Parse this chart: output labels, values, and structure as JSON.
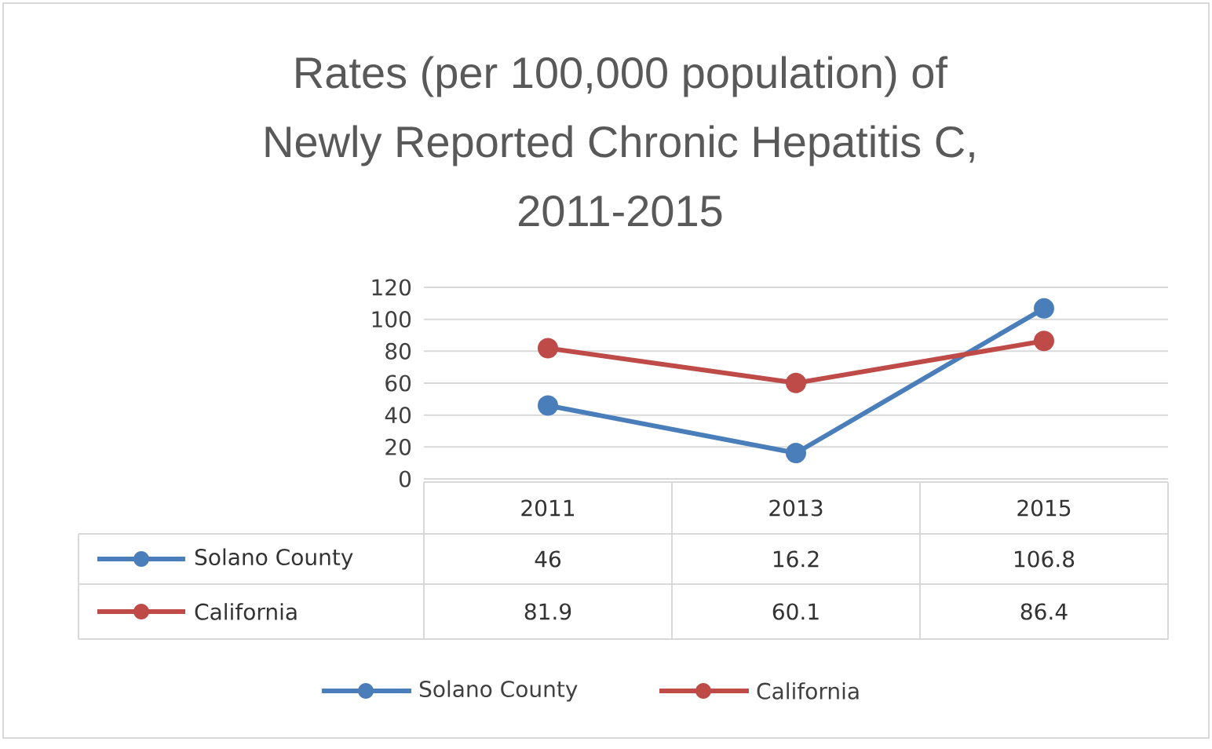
{
  "chart_data": {
    "type": "line",
    "title": "Rates (per 100,000 population) of Newly Reported Chronic Hepatitis C, 2011-2015",
    "categories": [
      "2011",
      "2013",
      "2015"
    ],
    "series": [
      {
        "name": "Solano County",
        "color": "#4a7ebb",
        "values": [
          46,
          16.2,
          106.8
        ]
      },
      {
        "name": "California",
        "color": "#be4b48",
        "values": [
          81.9,
          60.1,
          86.4
        ]
      }
    ],
    "ylim": [
      0,
      120
    ],
    "yticks": [
      0,
      20,
      40,
      60,
      80,
      100,
      120
    ],
    "grid": "y",
    "legend": "bottom",
    "data_labels": true,
    "marker": "circle",
    "line_style": "solid"
  }
}
